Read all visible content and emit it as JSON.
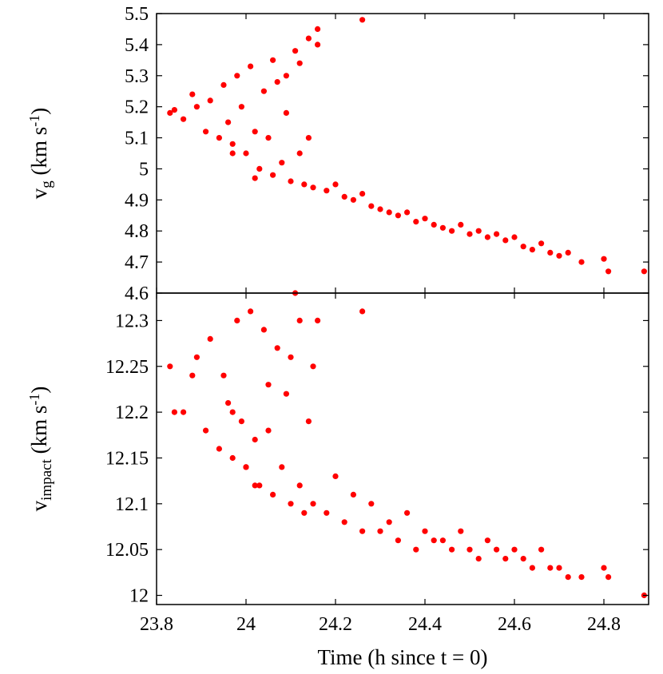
{
  "chart_data": [
    {
      "type": "scatter",
      "panel": "top",
      "ylabel": {
        "main": "v",
        "sub": "g",
        "unit": " (km s",
        "sup": "-1",
        "close": ")"
      },
      "xlim": [
        23.8,
        24.9
      ],
      "ylim": [
        4.6,
        5.5
      ],
      "yticks": [
        "4.6",
        "4.7",
        "4.8",
        "4.9",
        "5",
        "5.1",
        "5.2",
        "5.3",
        "5.4",
        "5.5"
      ],
      "grid": false,
      "series": [
        {
          "color": "#ff0000",
          "x": [
            23.83,
            23.84,
            23.86,
            23.88,
            23.89,
            23.91,
            23.92,
            23.94,
            23.95,
            23.96,
            23.97,
            23.98,
            23.99,
            24.0,
            24.01,
            24.02,
            24.03,
            24.04,
            24.05,
            24.06,
            24.07,
            24.08,
            24.09,
            24.1,
            24.11,
            24.12,
            24.13,
            24.14,
            24.15,
            24.16,
            24.18,
            24.2,
            24.22,
            24.24,
            24.26,
            24.28,
            24.3,
            24.32,
            24.34,
            24.36,
            24.38,
            24.4,
            24.42,
            24.44,
            24.46,
            24.48,
            24.5,
            24.52,
            24.54,
            24.56,
            24.58,
            24.6,
            24.62,
            24.64,
            24.66,
            24.68,
            24.7,
            24.72,
            24.75,
            24.8,
            24.81,
            24.89,
            24.16,
            24.26,
            24.12,
            24.06,
            24.02,
            23.97,
            24.09,
            24.14
          ],
          "y": [
            5.18,
            5.19,
            5.16,
            5.24,
            5.2,
            5.12,
            5.22,
            5.1,
            5.27,
            5.15,
            5.08,
            5.3,
            5.2,
            5.05,
            5.33,
            5.12,
            5.0,
            5.25,
            5.1,
            4.98,
            5.28,
            5.02,
            5.18,
            4.96,
            5.38,
            5.05,
            4.95,
            5.1,
            4.94,
            5.45,
            4.93,
            4.95,
            4.91,
            4.9,
            4.92,
            4.88,
            4.87,
            4.86,
            4.85,
            4.86,
            4.83,
            4.84,
            4.82,
            4.81,
            4.8,
            4.82,
            4.79,
            4.8,
            4.78,
            4.79,
            4.77,
            4.78,
            4.75,
            4.74,
            4.76,
            4.73,
            4.72,
            4.73,
            4.7,
            4.71,
            4.67,
            4.67,
            5.4,
            5.48,
            5.34,
            5.35,
            4.97,
            5.05,
            5.3,
            5.42
          ]
        }
      ]
    },
    {
      "type": "scatter",
      "panel": "bottom",
      "ylabel": {
        "main": "v",
        "sub": "impact",
        "unit": " (km s",
        "sup": "-1",
        "close": ")"
      },
      "xlabel": "Time (h since t = 0)",
      "xlim": [
        23.8,
        24.9
      ],
      "ylim": [
        11.99,
        12.33
      ],
      "xticks": [
        "23.8",
        "24",
        "24.2",
        "24.4",
        "24.6",
        "24.8"
      ],
      "yticks": [
        "12",
        "12.05",
        "12.1",
        "12.15",
        "12.2",
        "12.25",
        "12.3"
      ],
      "grid": false,
      "series": [
        {
          "color": "#ff0000",
          "x": [
            23.83,
            23.84,
            23.86,
            23.88,
            23.89,
            23.91,
            23.92,
            23.94,
            23.95,
            23.96,
            23.97,
            23.98,
            23.99,
            24.0,
            24.01,
            24.02,
            24.03,
            24.04,
            24.05,
            24.06,
            24.07,
            24.08,
            24.09,
            24.1,
            24.11,
            24.12,
            24.13,
            24.14,
            24.15,
            24.16,
            24.18,
            24.2,
            24.22,
            24.24,
            24.26,
            24.28,
            24.3,
            24.32,
            24.34,
            24.36,
            24.38,
            24.4,
            24.42,
            24.44,
            24.46,
            24.48,
            24.5,
            24.52,
            24.54,
            24.56,
            24.58,
            24.6,
            24.62,
            24.64,
            24.66,
            24.68,
            24.7,
            24.72,
            24.75,
            24.8,
            24.81,
            24.89,
            24.12,
            24.26,
            24.02,
            24.1,
            23.97,
            24.15,
            24.05,
            24.0
          ],
          "y": [
            12.25,
            12.2,
            12.2,
            12.24,
            12.26,
            12.18,
            12.28,
            12.16,
            12.24,
            12.21,
            12.15,
            12.3,
            12.19,
            12.14,
            12.31,
            12.17,
            12.12,
            12.29,
            12.18,
            12.11,
            12.27,
            12.14,
            12.22,
            12.1,
            12.33,
            12.12,
            12.09,
            12.19,
            12.1,
            12.3,
            12.09,
            12.13,
            12.08,
            12.11,
            12.07,
            12.1,
            12.07,
            12.08,
            12.06,
            12.09,
            12.05,
            12.07,
            12.06,
            12.06,
            12.05,
            12.07,
            12.05,
            12.04,
            12.06,
            12.05,
            12.04,
            12.05,
            12.04,
            12.03,
            12.05,
            12.03,
            12.03,
            12.02,
            12.02,
            12.03,
            12.02,
            12.0,
            12.3,
            12.31,
            12.12,
            12.26,
            12.2,
            12.25,
            12.23,
            12.14
          ]
        }
      ]
    }
  ]
}
